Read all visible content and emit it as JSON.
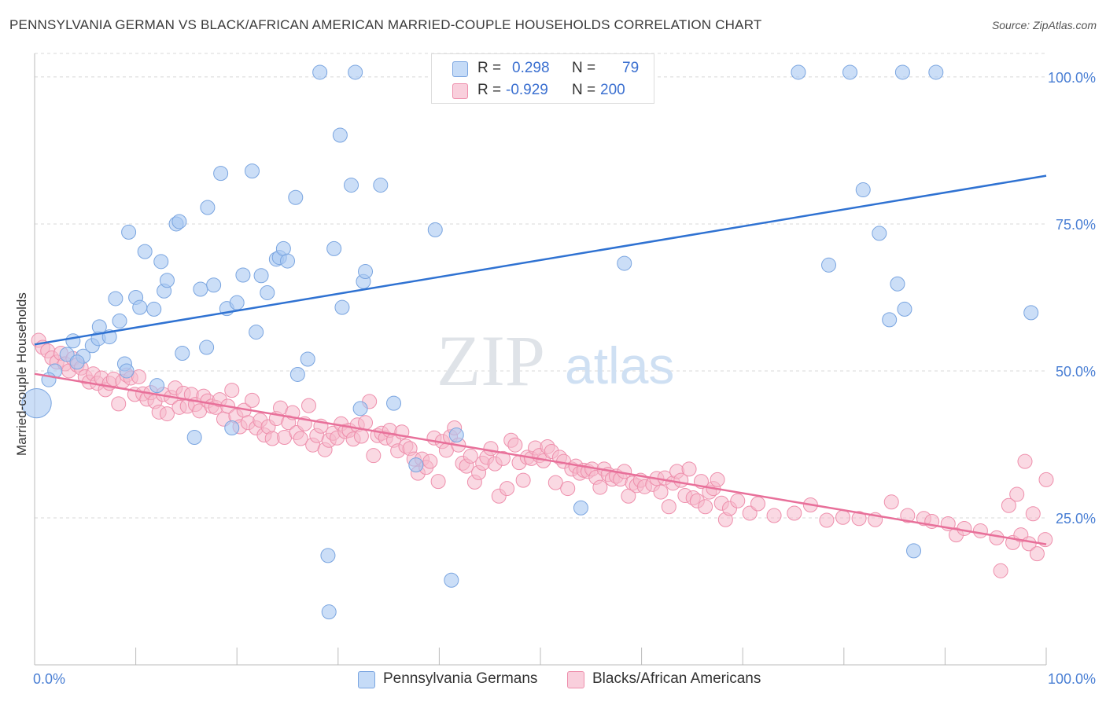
{
  "title": "PENNSYLVANIA GERMAN VS BLACK/AFRICAN AMERICAN MARRIED-COUPLE HOUSEHOLDS CORRELATION CHART",
  "source": "Source: ZipAtlas.com",
  "watermark": {
    "zip": "ZIP",
    "atlas": "atlas"
  },
  "legend_top": {
    "rows": [
      {
        "r_label": "R =",
        "r_value": "0.298",
        "n_label": "N =",
        "n_value": "79",
        "color": "#a9c8f2"
      },
      {
        "r_label": "R =",
        "r_value": "-0.929",
        "n_label": "N =",
        "n_value": "200",
        "color": "#f6b9cc"
      }
    ]
  },
  "legend_bottom": [
    {
      "label": "Pennsylvania Germans",
      "color": "#a9c8f2"
    },
    {
      "label": "Blacks/African Americans",
      "color": "#f6b9cc"
    }
  ],
  "colors": {
    "blue_fill": "#a9c8f2",
    "blue_stroke": "#7aa5e0",
    "blue_line": "#2f72d2",
    "pink_fill": "#f6b9cc",
    "pink_stroke": "#ee8fac",
    "pink_line": "#e8709a",
    "tick_label": "#4a7fd4",
    "grid": "#d8d8d8"
  },
  "chart_data": {
    "type": "scatter",
    "title": "PENNSYLVANIA GERMAN VS BLACK/AFRICAN AMERICAN MARRIED-COUPLE HOUSEHOLDS CORRELATION CHART",
    "xlabel": "",
    "ylabel": "Married-couple Households",
    "xlim": [
      0,
      100
    ],
    "ylim": [
      0,
      104
    ],
    "x_tick_labels": [
      "0.0%",
      "100.0%"
    ],
    "y_ticks": [
      25,
      50,
      75,
      100
    ],
    "y_tick_labels": [
      "25.0%",
      "50.0%",
      "75.0%",
      "100.0%"
    ],
    "grid": true,
    "legend_position": "bottom",
    "series": [
      {
        "name": "Pennsylvania Germans",
        "r": 0.298,
        "n": 79,
        "trend": [
          [
            0,
            54.5
          ],
          [
            100,
            83.2
          ]
        ],
        "points": [
          [
            0.2,
            44.5,
            3
          ],
          [
            2.0,
            50.0,
            1
          ],
          [
            1.4,
            48.5,
            1
          ],
          [
            3.2,
            52.8,
            1
          ],
          [
            3.8,
            55.1,
            1
          ],
          [
            4.8,
            52.5,
            1
          ],
          [
            4.2,
            51.5,
            1
          ],
          [
            5.7,
            54.3,
            1
          ],
          [
            6.3,
            55.5,
            1
          ],
          [
            6.4,
            57.5,
            1
          ],
          [
            7.4,
            55.8,
            1
          ],
          [
            8.0,
            62.3,
            1
          ],
          [
            8.4,
            58.5,
            1
          ],
          [
            8.9,
            51.2,
            1
          ],
          [
            9.1,
            50.0,
            1
          ],
          [
            9.3,
            73.6,
            1
          ],
          [
            10.0,
            62.5,
            1
          ],
          [
            10.4,
            60.8,
            1
          ],
          [
            10.9,
            70.3,
            1
          ],
          [
            11.8,
            60.5,
            1
          ],
          [
            12.1,
            47.5,
            1
          ],
          [
            12.5,
            68.6,
            1
          ],
          [
            12.8,
            63.6,
            1
          ],
          [
            13.1,
            65.4,
            1
          ],
          [
            14.0,
            75.0,
            1
          ],
          [
            14.3,
            75.4,
            1
          ],
          [
            14.6,
            53.0,
            1
          ],
          [
            15.8,
            38.7,
            1
          ],
          [
            16.4,
            63.9,
            1
          ],
          [
            17.0,
            54.0,
            1
          ],
          [
            17.1,
            77.8,
            1
          ],
          [
            17.7,
            64.6,
            1
          ],
          [
            18.4,
            83.6,
            1
          ],
          [
            19.0,
            60.6,
            1
          ],
          [
            19.5,
            40.3,
            1
          ],
          [
            20.0,
            61.6,
            1
          ],
          [
            20.6,
            66.3,
            1
          ],
          [
            21.5,
            84.0,
            1
          ],
          [
            21.9,
            56.6,
            1
          ],
          [
            22.4,
            66.2,
            1
          ],
          [
            23.0,
            63.3,
            1
          ],
          [
            23.9,
            69.0,
            1
          ],
          [
            24.2,
            69.3,
            1
          ],
          [
            24.6,
            70.8,
            1
          ],
          [
            25.0,
            68.7,
            1
          ],
          [
            25.8,
            79.5,
            1
          ],
          [
            26.0,
            49.4,
            1
          ],
          [
            27.0,
            52.0,
            1
          ],
          [
            28.2,
            100.8,
            1
          ],
          [
            29.0,
            18.6,
            1
          ],
          [
            29.1,
            9.0,
            1
          ],
          [
            29.6,
            70.8,
            1
          ],
          [
            30.2,
            90.1,
            1
          ],
          [
            30.4,
            60.8,
            1
          ],
          [
            31.3,
            81.6,
            1
          ],
          [
            31.7,
            100.8,
            1
          ],
          [
            32.2,
            43.6,
            1
          ],
          [
            32.5,
            65.2,
            1
          ],
          [
            32.7,
            66.9,
            1
          ],
          [
            34.2,
            81.6,
            1
          ],
          [
            35.5,
            44.5,
            1
          ],
          [
            37.7,
            34.0,
            1
          ],
          [
            39.6,
            74.0,
            1
          ],
          [
            41.2,
            14.4,
            1
          ],
          [
            41.7,
            39.1,
            1
          ],
          [
            58.3,
            68.3,
            1
          ],
          [
            54.0,
            26.7,
            1
          ],
          [
            75.5,
            100.8,
            1
          ],
          [
            78.5,
            68.0,
            1
          ],
          [
            80.6,
            100.8,
            1
          ],
          [
            81.9,
            80.8,
            1
          ],
          [
            83.5,
            73.4,
            1
          ],
          [
            84.5,
            58.7,
            1
          ],
          [
            85.3,
            64.8,
            1
          ],
          [
            85.8,
            100.8,
            1
          ],
          [
            86.0,
            60.5,
            1
          ],
          [
            86.9,
            19.4,
            1
          ],
          [
            89.1,
            100.8,
            1
          ],
          [
            98.5,
            59.9,
            1
          ]
        ]
      },
      {
        "name": "Blacks/African Americans",
        "r": -0.929,
        "n": 200,
        "trend": [
          [
            0,
            49.5
          ],
          [
            100,
            20.5
          ]
        ],
        "points": [
          [
            0.4,
            55.2
          ],
          [
            0.8,
            54.0
          ],
          [
            1.3,
            53.4
          ],
          [
            1.7,
            52.2
          ],
          [
            2.2,
            51.5
          ],
          [
            2.6,
            53.0
          ],
          [
            3.0,
            51.2
          ],
          [
            3.4,
            50.0
          ],
          [
            3.8,
            52.1
          ],
          [
            4.2,
            51.0
          ],
          [
            4.6,
            50.5
          ],
          [
            5.0,
            49.0
          ],
          [
            5.4,
            48.1
          ],
          [
            5.8,
            49.5
          ],
          [
            6.2,
            47.9
          ],
          [
            6.6,
            48.8
          ],
          [
            7.0,
            46.8
          ],
          [
            7.4,
            47.9
          ],
          [
            7.8,
            48.6
          ],
          [
            8.3,
            44.4
          ],
          [
            8.7,
            48.2
          ],
          [
            9.1,
            49.3
          ],
          [
            9.5,
            48.8
          ],
          [
            9.9,
            46.0
          ],
          [
            10.3,
            49.0
          ],
          [
            10.7,
            46.1
          ],
          [
            11.1,
            45.2
          ],
          [
            11.5,
            46.3
          ],
          [
            11.9,
            44.8
          ],
          [
            12.3,
            43.0
          ],
          [
            12.7,
            46.0
          ],
          [
            13.1,
            42.7
          ],
          [
            13.5,
            45.5
          ],
          [
            13.9,
            47.1
          ],
          [
            14.3,
            43.8
          ],
          [
            14.7,
            46.2
          ],
          [
            15.1,
            44.0
          ],
          [
            15.5,
            46.0
          ],
          [
            15.9,
            44.3
          ],
          [
            16.3,
            43.2
          ],
          [
            16.7,
            45.7
          ],
          [
            17.1,
            44.9
          ],
          [
            17.5,
            44.0
          ],
          [
            17.9,
            43.8
          ],
          [
            18.3,
            45.1
          ],
          [
            18.7,
            41.8
          ],
          [
            19.1,
            44.0
          ],
          [
            19.5,
            46.7
          ],
          [
            19.9,
            42.3
          ],
          [
            20.3,
            40.5
          ],
          [
            20.7,
            43.3
          ],
          [
            21.1,
            41.2
          ],
          [
            21.5,
            45.0
          ],
          [
            21.9,
            40.3
          ],
          [
            22.3,
            41.6
          ],
          [
            22.7,
            39.1
          ],
          [
            23.1,
            40.5
          ],
          [
            23.5,
            38.5
          ],
          [
            23.9,
            41.9
          ],
          [
            24.3,
            43.7
          ],
          [
            24.7,
            38.7
          ],
          [
            25.1,
            41.2
          ],
          [
            25.5,
            42.9
          ],
          [
            25.9,
            39.5
          ],
          [
            26.3,
            38.5
          ],
          [
            26.7,
            41.0
          ],
          [
            27.1,
            44.1
          ],
          [
            27.5,
            37.4
          ],
          [
            27.9,
            39.0
          ],
          [
            28.3,
            40.6
          ],
          [
            28.7,
            36.6
          ],
          [
            29.1,
            38.2
          ],
          [
            29.5,
            39.4
          ],
          [
            29.9,
            38.6
          ],
          [
            30.3,
            41.0
          ],
          [
            30.7,
            39.7
          ],
          [
            31.1,
            39.9
          ],
          [
            31.5,
            38.4
          ],
          [
            31.9,
            40.8
          ],
          [
            32.3,
            38.9
          ],
          [
            32.7,
            41.2
          ],
          [
            33.1,
            44.8
          ],
          [
            33.5,
            35.6
          ],
          [
            33.9,
            39.0
          ],
          [
            34.3,
            39.4
          ],
          [
            34.7,
            38.6
          ],
          [
            35.1,
            39.9
          ],
          [
            35.5,
            38.2
          ],
          [
            35.9,
            36.4
          ],
          [
            36.3,
            39.6
          ],
          [
            36.7,
            37.2
          ],
          [
            37.1,
            36.8
          ],
          [
            37.5,
            35.0
          ],
          [
            37.9,
            32.6
          ],
          [
            38.3,
            35.0
          ],
          [
            38.7,
            33.6
          ],
          [
            39.1,
            34.6
          ],
          [
            39.5,
            38.6
          ],
          [
            39.9,
            31.2
          ],
          [
            40.3,
            38.0
          ],
          [
            40.7,
            36.5
          ],
          [
            41.1,
            38.8
          ],
          [
            41.5,
            40.3
          ],
          [
            41.9,
            37.4
          ],
          [
            42.3,
            34.3
          ],
          [
            42.7,
            33.8
          ],
          [
            43.1,
            35.5
          ],
          [
            43.5,
            31.1
          ],
          [
            43.9,
            32.7
          ],
          [
            44.3,
            34.3
          ],
          [
            44.7,
            35.3
          ],
          [
            45.1,
            36.8
          ],
          [
            45.5,
            34.2
          ],
          [
            45.9,
            28.7
          ],
          [
            46.3,
            35.1
          ],
          [
            46.7,
            30.0
          ],
          [
            47.1,
            38.2
          ],
          [
            47.5,
            37.4
          ],
          [
            47.9,
            34.4
          ],
          [
            48.3,
            31.4
          ],
          [
            48.7,
            35.3
          ],
          [
            49.1,
            35.1
          ],
          [
            49.5,
            36.9
          ],
          [
            49.9,
            35.6
          ],
          [
            50.3,
            34.7
          ],
          [
            50.7,
            37.1
          ],
          [
            51.1,
            36.3
          ],
          [
            51.5,
            31.0
          ],
          [
            51.9,
            35.3
          ],
          [
            52.3,
            34.6
          ],
          [
            52.7,
            30.0
          ],
          [
            53.1,
            33.3
          ],
          [
            53.5,
            33.8
          ],
          [
            53.9,
            32.6
          ],
          [
            54.3,
            33.1
          ],
          [
            54.7,
            32.9
          ],
          [
            55.1,
            33.3
          ],
          [
            55.5,
            31.9
          ],
          [
            55.9,
            30.2
          ],
          [
            56.3,
            33.3
          ],
          [
            56.7,
            32.4
          ],
          [
            57.1,
            31.6
          ],
          [
            57.5,
            32.1
          ],
          [
            57.9,
            31.6
          ],
          [
            58.3,
            32.9
          ],
          [
            58.7,
            28.7
          ],
          [
            59.1,
            30.9
          ],
          [
            59.5,
            30.5
          ],
          [
            59.9,
            31.4
          ],
          [
            60.3,
            30.3
          ],
          [
            61.1,
            30.7
          ],
          [
            61.5,
            31.7
          ],
          [
            61.9,
            29.4
          ],
          [
            62.3,
            31.8
          ],
          [
            62.7,
            26.9
          ],
          [
            63.1,
            30.9
          ],
          [
            63.5,
            32.9
          ],
          [
            63.9,
            31.4
          ],
          [
            64.3,
            28.8
          ],
          [
            64.7,
            33.3
          ],
          [
            65.1,
            28.4
          ],
          [
            65.5,
            27.9
          ],
          [
            65.9,
            31.2
          ],
          [
            66.3,
            26.9
          ],
          [
            66.7,
            29.4
          ],
          [
            67.1,
            30.0
          ],
          [
            67.5,
            31.5
          ],
          [
            67.9,
            27.5
          ],
          [
            68.3,
            24.7
          ],
          [
            68.7,
            26.6
          ],
          [
            69.5,
            27.9
          ],
          [
            70.7,
            25.8
          ],
          [
            71.5,
            27.4
          ],
          [
            73.1,
            25.4
          ],
          [
            75.1,
            25.8
          ],
          [
            76.7,
            27.2
          ],
          [
            78.3,
            24.6
          ],
          [
            79.9,
            25.1
          ],
          [
            81.5,
            24.9
          ],
          [
            83.1,
            24.7
          ],
          [
            84.7,
            27.7
          ],
          [
            86.3,
            25.4
          ],
          [
            87.9,
            24.9
          ],
          [
            88.7,
            24.4
          ],
          [
            90.3,
            24.0
          ],
          [
            91.1,
            22.1
          ],
          [
            91.9,
            23.2
          ],
          [
            93.5,
            22.8
          ],
          [
            95.1,
            21.6
          ],
          [
            96.7,
            20.8
          ],
          [
            97.5,
            22.1
          ],
          [
            98.3,
            20.6
          ],
          [
            99.1,
            18.9
          ],
          [
            99.9,
            21.3
          ],
          [
            100.0,
            31.5
          ],
          [
            98.7,
            25.7
          ],
          [
            97.9,
            34.6
          ],
          [
            97.1,
            29.0
          ],
          [
            96.3,
            27.1
          ],
          [
            95.5,
            16.0
          ]
        ]
      }
    ]
  }
}
